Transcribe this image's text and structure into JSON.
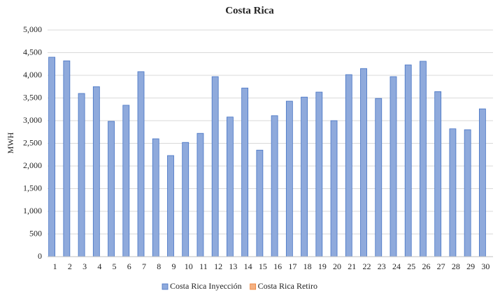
{
  "chart_data": {
    "type": "bar",
    "title": "Costa Rica",
    "y_label": "MWH",
    "categories": [
      "1",
      "2",
      "3",
      "4",
      "5",
      "6",
      "7",
      "8",
      "9",
      "10",
      "11",
      "12",
      "13",
      "14",
      "15",
      "16",
      "17",
      "18",
      "19",
      "20",
      "21",
      "22",
      "23",
      "24",
      "25",
      "26",
      "27",
      "28",
      "29",
      "30"
    ],
    "series": [
      {
        "name": "Costa Rica Inyección",
        "color": "#8faadc",
        "edge": "#4472c4",
        "values": [
          4400,
          4320,
          3600,
          3750,
          2985,
          3340,
          4080,
          2600,
          2230,
          2520,
          2720,
          3970,
          3080,
          3720,
          2350,
          3110,
          3430,
          3520,
          3630,
          3000,
          4015,
          4150,
          3490,
          3970,
          4230,
          4310,
          3640,
          2820,
          2800,
          3260
        ]
      },
      {
        "name": "Costa Rica Retiro",
        "color": "#f4b183",
        "edge": "#ed7d31",
        "values": [
          0,
          0,
          0,
          0,
          0,
          0,
          0,
          0,
          0,
          0,
          0,
          0,
          0,
          0,
          0,
          0,
          0,
          0,
          0,
          0,
          0,
          0,
          0,
          0,
          0,
          0,
          0,
          0,
          0,
          0
        ]
      }
    ],
    "ylim": [
      0,
      5000
    ],
    "yticks": [
      0,
      500,
      {
        "value": 1000,
        "label": "1,000"
      },
      {
        "value": 1500,
        "label": "1,500"
      },
      {
        "value": 2000,
        "label": "2,000"
      },
      {
        "value": 2500,
        "label": "2,500"
      },
      {
        "value": 3000,
        "label": "3,000"
      },
      {
        "value": 3500,
        "label": "3,500"
      },
      {
        "value": 4000,
        "label": "4,000"
      },
      {
        "value": 4500,
        "label": "4,500"
      },
      {
        "value": 5000,
        "label": "5,000"
      }
    ],
    "grid": true,
    "legend": "bottom"
  }
}
